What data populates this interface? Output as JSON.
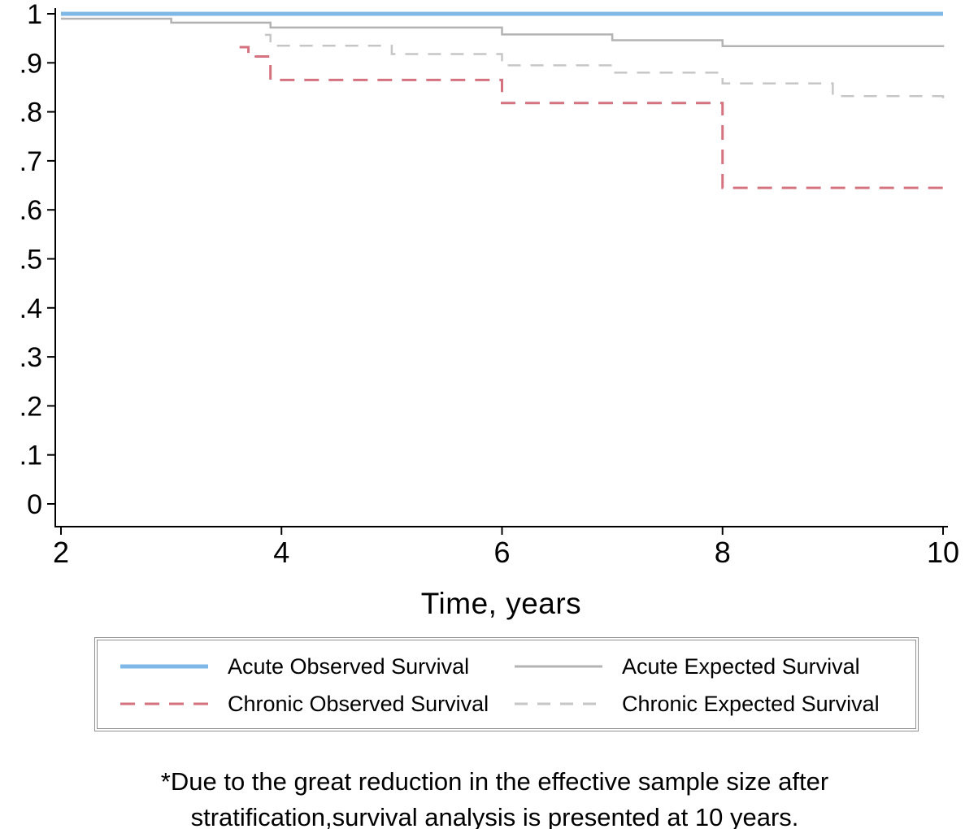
{
  "chart_data": {
    "type": "line",
    "subtype": "kaplan-meier-step",
    "title": "",
    "xlabel": "Time, years",
    "ylabel": "",
    "xlim": [
      2,
      10
    ],
    "ylim": [
      0,
      1
    ],
    "grid": false,
    "legend_position": "bottom",
    "xticks": [
      2,
      4,
      6,
      8,
      10
    ],
    "xtick_labels": [
      "2",
      "4",
      "6",
      "8",
      "10"
    ],
    "yticks": [
      0,
      0.1,
      0.2,
      0.3,
      0.4,
      0.5,
      0.6,
      0.7,
      0.8,
      0.9,
      1
    ],
    "ytick_labels": [
      "0",
      ".1",
      ".2",
      ".3",
      ".4",
      ".5",
      ".6",
      ".7",
      ".8",
      ".9",
      "1"
    ],
    "series": [
      {
        "name": "Acute Observed Survival",
        "color": "#7fb7e6",
        "dash": [],
        "width": 5,
        "points": [
          [
            2,
            1.0
          ],
          [
            10,
            1.0
          ]
        ]
      },
      {
        "name": "Acute Expected Survival",
        "color": "#b3b3b3",
        "dash": [],
        "width": 2.5,
        "points": [
          [
            2,
            0.99
          ],
          [
            3,
            0.982
          ],
          [
            3.9,
            0.972
          ],
          [
            6,
            0.958
          ],
          [
            7,
            0.946
          ],
          [
            8,
            0.934
          ],
          [
            10,
            0.932
          ]
        ]
      },
      {
        "name": "Chronic Observed Survival",
        "color": "#d4737f",
        "dash": [
          18,
          12
        ],
        "width": 3,
        "points": [
          [
            3.62,
            0.932
          ],
          [
            3.7,
            0.913
          ],
          [
            3.9,
            0.865
          ],
          [
            6,
            0.818
          ],
          [
            8,
            0.645
          ],
          [
            10,
            0.645
          ]
        ]
      },
      {
        "name": "Chronic Expected Survival",
        "color": "#c6c6c6",
        "dash": [
          16,
          12
        ],
        "width": 2.5,
        "points": [
          [
            3.85,
            0.957
          ],
          [
            3.9,
            0.935
          ],
          [
            5,
            0.918
          ],
          [
            6,
            0.895
          ],
          [
            7,
            0.88
          ],
          [
            8,
            0.858
          ],
          [
            9,
            0.832
          ],
          [
            10,
            0.826
          ]
        ]
      }
    ]
  },
  "footnote": {
    "line1": "*Due to the great reduction in the effective sample size after",
    "line2": "stratification,survival analysis is presented at 10 years."
  }
}
